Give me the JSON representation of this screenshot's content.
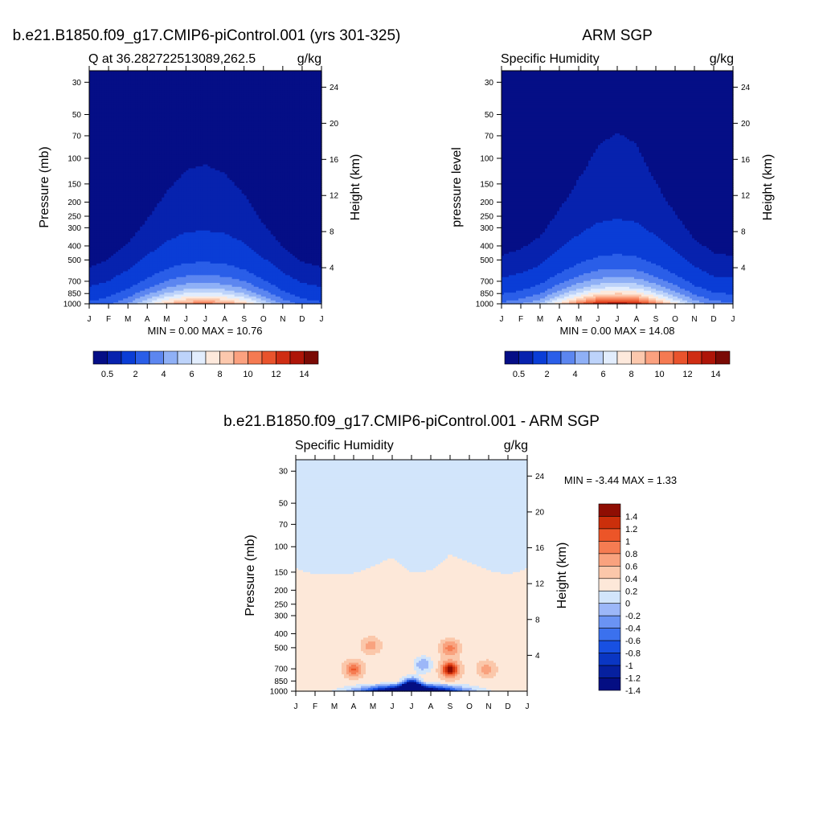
{
  "panels": [
    {
      "title": "b.e21.B1850.f09_g17.CMIP6-piControl.001 (yrs 301-325)",
      "left_label": "Q at 36.282722513089,262.5",
      "right_label": "g/kg",
      "ylabel_left": "Pressure (mb)",
      "ylabel_right": "Height (km)",
      "minmax": "MIN =   0.00 MAX =  10.76"
    },
    {
      "title": "ARM SGP",
      "left_label": "Specific Humidity",
      "right_label": "g/kg",
      "ylabel_left": "pressure level",
      "ylabel_right": "Height (km)",
      "minmax": "MIN =   0.00 MAX =  14.08"
    },
    {
      "title": "b.e21.B1850.f09_g17.CMIP6-piControl.001 - ARM SGP",
      "left_label": "Specific Humidity",
      "right_label": "g/kg",
      "ylabel_left": "Pressure (mb)",
      "ylabel_right": "Height (km)",
      "minmax": "MIN =  -3.44 MAX =   1.33"
    }
  ],
  "chart_data": [
    {
      "type": "heatmap",
      "title": "b.e21.B1850.f09_g17.CMIP6-piControl.001 (yrs 301-325)",
      "subtitle": "Q at 36.282722513089,262.5",
      "units": "g/kg",
      "xlabel": "",
      "ylabel": "Pressure (mb)",
      "ylabel_right": "Height (km)",
      "x_ticks": [
        "J",
        "F",
        "M",
        "A",
        "M",
        "J",
        "J",
        "A",
        "S",
        "O",
        "N",
        "D",
        "J"
      ],
      "y_ticks": [
        30,
        50,
        70,
        100,
        150,
        200,
        250,
        300,
        400,
        500,
        700,
        850,
        1000
      ],
      "y_right_ticks": [
        24,
        20,
        16,
        12,
        8,
        4
      ],
      "ylim": [
        1000,
        25
      ],
      "y_scale": "log",
      "min": 0.0,
      "max": 10.76,
      "colorbar_labels": [
        "0.5",
        "2",
        "4",
        "6",
        "8",
        "10",
        "12",
        "14"
      ],
      "colorbar_orientation": "horizontal",
      "profile": {
        "surface_max_by_month": [
          2.3,
          2.9,
          4.2,
          6.4,
          8.8,
          10.4,
          10.76,
          10.2,
          8.6,
          6.0,
          3.9,
          2.7,
          2.3
        ],
        "scale_height_mb": 290
      }
    },
    {
      "type": "heatmap",
      "title": "ARM SGP",
      "subtitle": "Specific Humidity",
      "units": "g/kg",
      "xlabel": "",
      "ylabel": "pressure level",
      "ylabel_right": "Height (km)",
      "x_ticks": [
        "J",
        "F",
        "M",
        "A",
        "M",
        "J",
        "J",
        "A",
        "S",
        "O",
        "N",
        "D",
        "J"
      ],
      "y_ticks": [
        30,
        50,
        70,
        100,
        150,
        200,
        250,
        300,
        400,
        500,
        700,
        850,
        1000
      ],
      "y_right_ticks": [
        24,
        20,
        16,
        12,
        8,
        4
      ],
      "ylim": [
        1000,
        25
      ],
      "y_scale": "log",
      "min": 0.0,
      "max": 14.08,
      "colorbar_labels": [
        "0.5",
        "2",
        "4",
        "6",
        "8",
        "10",
        "12",
        "14"
      ],
      "colorbar_orientation": "horizontal",
      "profile": {
        "surface_max_by_month": [
          3.4,
          4.0,
          5.2,
          8.0,
          10.9,
          13.3,
          14.08,
          13.4,
          10.6,
          7.6,
          5.0,
          3.6,
          3.4
        ],
        "scale_height_mb": 280
      }
    },
    {
      "type": "heatmap",
      "title": "b.e21.B1850.f09_g17.CMIP6-piControl.001 - ARM SGP",
      "subtitle": "Specific Humidity",
      "units": "g/kg",
      "xlabel": "",
      "ylabel": "Pressure (mb)",
      "ylabel_right": "Height (km)",
      "x_ticks": [
        "J",
        "F",
        "M",
        "A",
        "M",
        "J",
        "J",
        "A",
        "S",
        "O",
        "N",
        "D",
        "J"
      ],
      "y_ticks": [
        30,
        50,
        70,
        100,
        150,
        200,
        250,
        300,
        400,
        500,
        700,
        850,
        1000
      ],
      "y_right_ticks": [
        24,
        20,
        16,
        12,
        8,
        4
      ],
      "ylim": [
        1000,
        25
      ],
      "y_scale": "log",
      "min": -3.44,
      "max": 1.33,
      "colorbar_labels": [
        "1.4",
        "1.2",
        "1",
        "0.8",
        "0.6",
        "0.4",
        "0.2",
        "0",
        "-0.2",
        "-0.4",
        "-0.6",
        "-0.8",
        "-1",
        "-1.2",
        "-1.4"
      ],
      "colorbar_orientation": "vertical",
      "zero_boundary_mb_by_month": [
        140,
        155,
        153,
        152,
        135,
        118,
        150,
        145,
        112,
        128,
        145,
        155,
        140
      ],
      "features": [
        {
          "month": 3.0,
          "pressure": 700,
          "value": 0.7
        },
        {
          "month": 3.9,
          "pressure": 480,
          "value": 0.4
        },
        {
          "month": 8.0,
          "pressure": 700,
          "value": 1.2
        },
        {
          "month": 8.0,
          "pressure": 500,
          "value": 0.6
        },
        {
          "month": 9.9,
          "pressure": 700,
          "value": 0.4
        },
        {
          "month": 6.0,
          "pressure": 950,
          "value": -3.0
        },
        {
          "month": 6.6,
          "pressure": 650,
          "value": -0.5
        }
      ]
    }
  ],
  "colors": {
    "seq_palette": [
      "#050e86",
      "#0722ae",
      "#0a3dd6",
      "#2a5ee8",
      "#5c86f0",
      "#8fb0f6",
      "#bdd3fa",
      "#e2edfd",
      "#fde9dc",
      "#fcc8ad",
      "#fba17f",
      "#f57a52",
      "#e9532c",
      "#cf2d13",
      "#ae1508",
      "#7a0a05"
    ],
    "div_palette": [
      "#040e83",
      "#06209f",
      "#0a36c3",
      "#1850e2",
      "#3b71ee",
      "#6a93f3",
      "#9cb7f8",
      "#d2e5fb",
      "#fde8d9",
      "#fbc7aa",
      "#f9a27e",
      "#f57c52",
      "#ec5528",
      "#cb2f0b",
      "#8f0e03"
    ]
  }
}
